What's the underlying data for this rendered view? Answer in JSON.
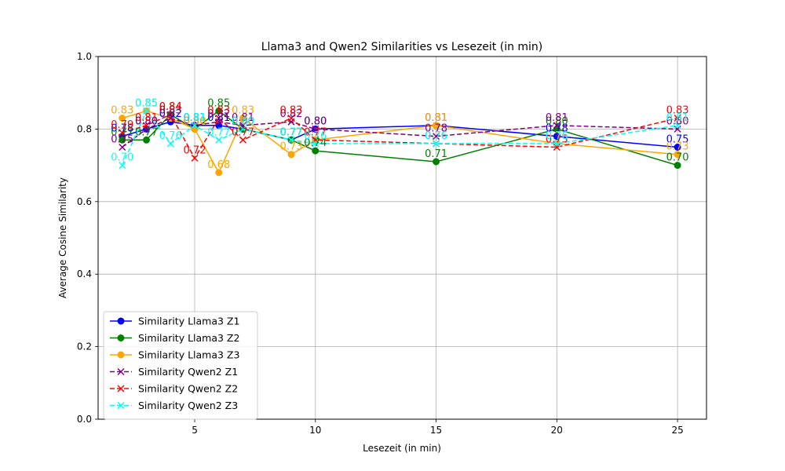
{
  "chart_data": {
    "type": "line",
    "title": "Llama3 and Qwen2 Similarities vs Lesezeit (in min)",
    "xlabel": "Lesezeit (in min)",
    "ylabel": "Average Cosine Similarity",
    "xlim": [
      1,
      26.2
    ],
    "ylim": [
      0.0,
      1.0
    ],
    "xticks": [
      5,
      10,
      15,
      20,
      25
    ],
    "yticks": [
      0.0,
      0.2,
      0.4,
      0.6,
      0.8,
      1.0
    ],
    "xtick_labels": [
      "5",
      "10",
      "15",
      "20",
      "25"
    ],
    "ytick_labels": [
      "0.0",
      "0.2",
      "0.4",
      "0.6",
      "0.8",
      "1.0"
    ],
    "grid": true,
    "legend_position": "lower-left",
    "x": [
      2,
      3,
      4,
      5,
      6,
      7,
      9,
      10,
      15,
      20,
      25
    ],
    "series": [
      {
        "name": "Similarity Llama3 Z1",
        "color": "#0000ff",
        "marker": "circle",
        "dash": false,
        "values": [
          0.78,
          0.8,
          0.82,
          0.81,
          0.81,
          0.8,
          0.77,
          0.8,
          0.81,
          0.78,
          0.75
        ],
        "labels": [
          "0.78",
          "0.80",
          "0.82",
          "0.81",
          "0.81",
          "0.80",
          "0.77",
          "0.80",
          "0.81",
          "0.78",
          "0.75"
        ]
      },
      {
        "name": "Similarity Llama3 Z2",
        "color": "#008000",
        "marker": "circle",
        "dash": false,
        "values": [
          0.77,
          0.77,
          0.84,
          0.8,
          0.85,
          0.8,
          0.77,
          0.74,
          0.71,
          0.8,
          0.7
        ],
        "labels": [
          "0.77",
          "0.77",
          "0.84",
          "0.80",
          "0.85",
          "0.80",
          "0.77",
          "0.74",
          "0.71",
          "0.80",
          "0.70"
        ]
      },
      {
        "name": "Similarity Llama3 Z3",
        "color": "#ffa500",
        "marker": "circle",
        "dash": false,
        "values": [
          0.83,
          0.85,
          0.83,
          0.8,
          0.68,
          0.83,
          0.73,
          0.77,
          0.81,
          0.76,
          0.73
        ],
        "labels": [
          "0.83",
          "0.85",
          "0.83",
          "0.80",
          "0.68",
          "0.83",
          "0.73",
          "0.77",
          "0.81",
          "0.76",
          "0.73"
        ]
      },
      {
        "name": "Similarity Qwen2 Z1",
        "color": "#800080",
        "marker": "x",
        "dash": true,
        "values": [
          0.75,
          0.8,
          0.83,
          0.81,
          0.82,
          0.81,
          0.82,
          0.8,
          0.78,
          0.81,
          0.8
        ],
        "labels": [
          "0.75",
          "0.80",
          "0.83",
          "0.81",
          "0.82",
          "0.81",
          "0.82",
          "0.80",
          "0.78",
          "0.81",
          "0.80"
        ]
      },
      {
        "name": "Similarity Qwen2 Z2",
        "color": "#ff0000",
        "marker": "x",
        "dash": true,
        "values": [
          0.79,
          0.81,
          0.84,
          0.72,
          0.83,
          0.77,
          0.83,
          0.77,
          0.76,
          0.75,
          0.83
        ],
        "labels": [
          "0.79",
          "0.81",
          "0.84",
          "0.72",
          "0.83",
          "0.77",
          "0.83",
          "0.77",
          "0.76",
          "0.75",
          "0.83"
        ]
      },
      {
        "name": "Similarity Qwen2 Z3",
        "color": "#00ffff",
        "marker": "x",
        "dash": true,
        "values": [
          0.7,
          0.85,
          0.76,
          0.81,
          0.77,
          0.8,
          0.77,
          0.76,
          0.76,
          0.76,
          0.81
        ],
        "labels": [
          "0.70",
          "0.85",
          "0.76",
          "0.81",
          "0.77",
          "0.80",
          "0.77",
          "0.76",
          "0.76",
          "0.76",
          "0.81"
        ]
      }
    ]
  }
}
